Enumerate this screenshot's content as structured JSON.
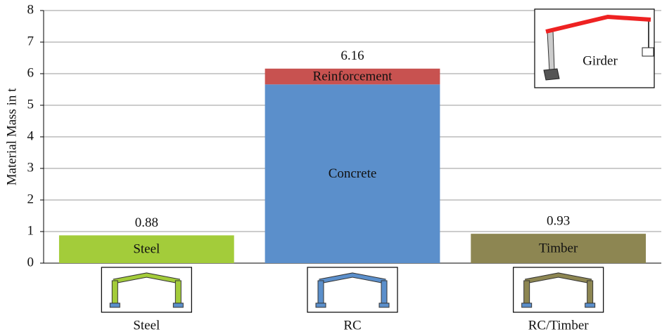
{
  "chart_data": {
    "type": "stacked-bar",
    "y_label": "Material Mass in t",
    "categories": [
      "Steel",
      "RC",
      "RC/Timber"
    ],
    "series": [
      {
        "name": "Steel",
        "color": "#a3cc3a",
        "values": [
          0.88,
          null,
          null
        ]
      },
      {
        "name": "Concrete",
        "color": "#5b8fcb",
        "values": [
          null,
          5.66,
          null
        ]
      },
      {
        "name": "Reinforcement",
        "color": "#c85250",
        "values": [
          null,
          0.5,
          null
        ]
      },
      {
        "name": "Timber",
        "color": "#8d8652",
        "values": [
          null,
          null,
          0.93
        ]
      }
    ],
    "totals": [
      0.88,
      6.16,
      0.93
    ],
    "annotation": "Girder",
    "ylim": [
      0,
      8
    ],
    "yticks": [
      0,
      1,
      2,
      3,
      4,
      5,
      6,
      7,
      8
    ],
    "grid": true
  }
}
